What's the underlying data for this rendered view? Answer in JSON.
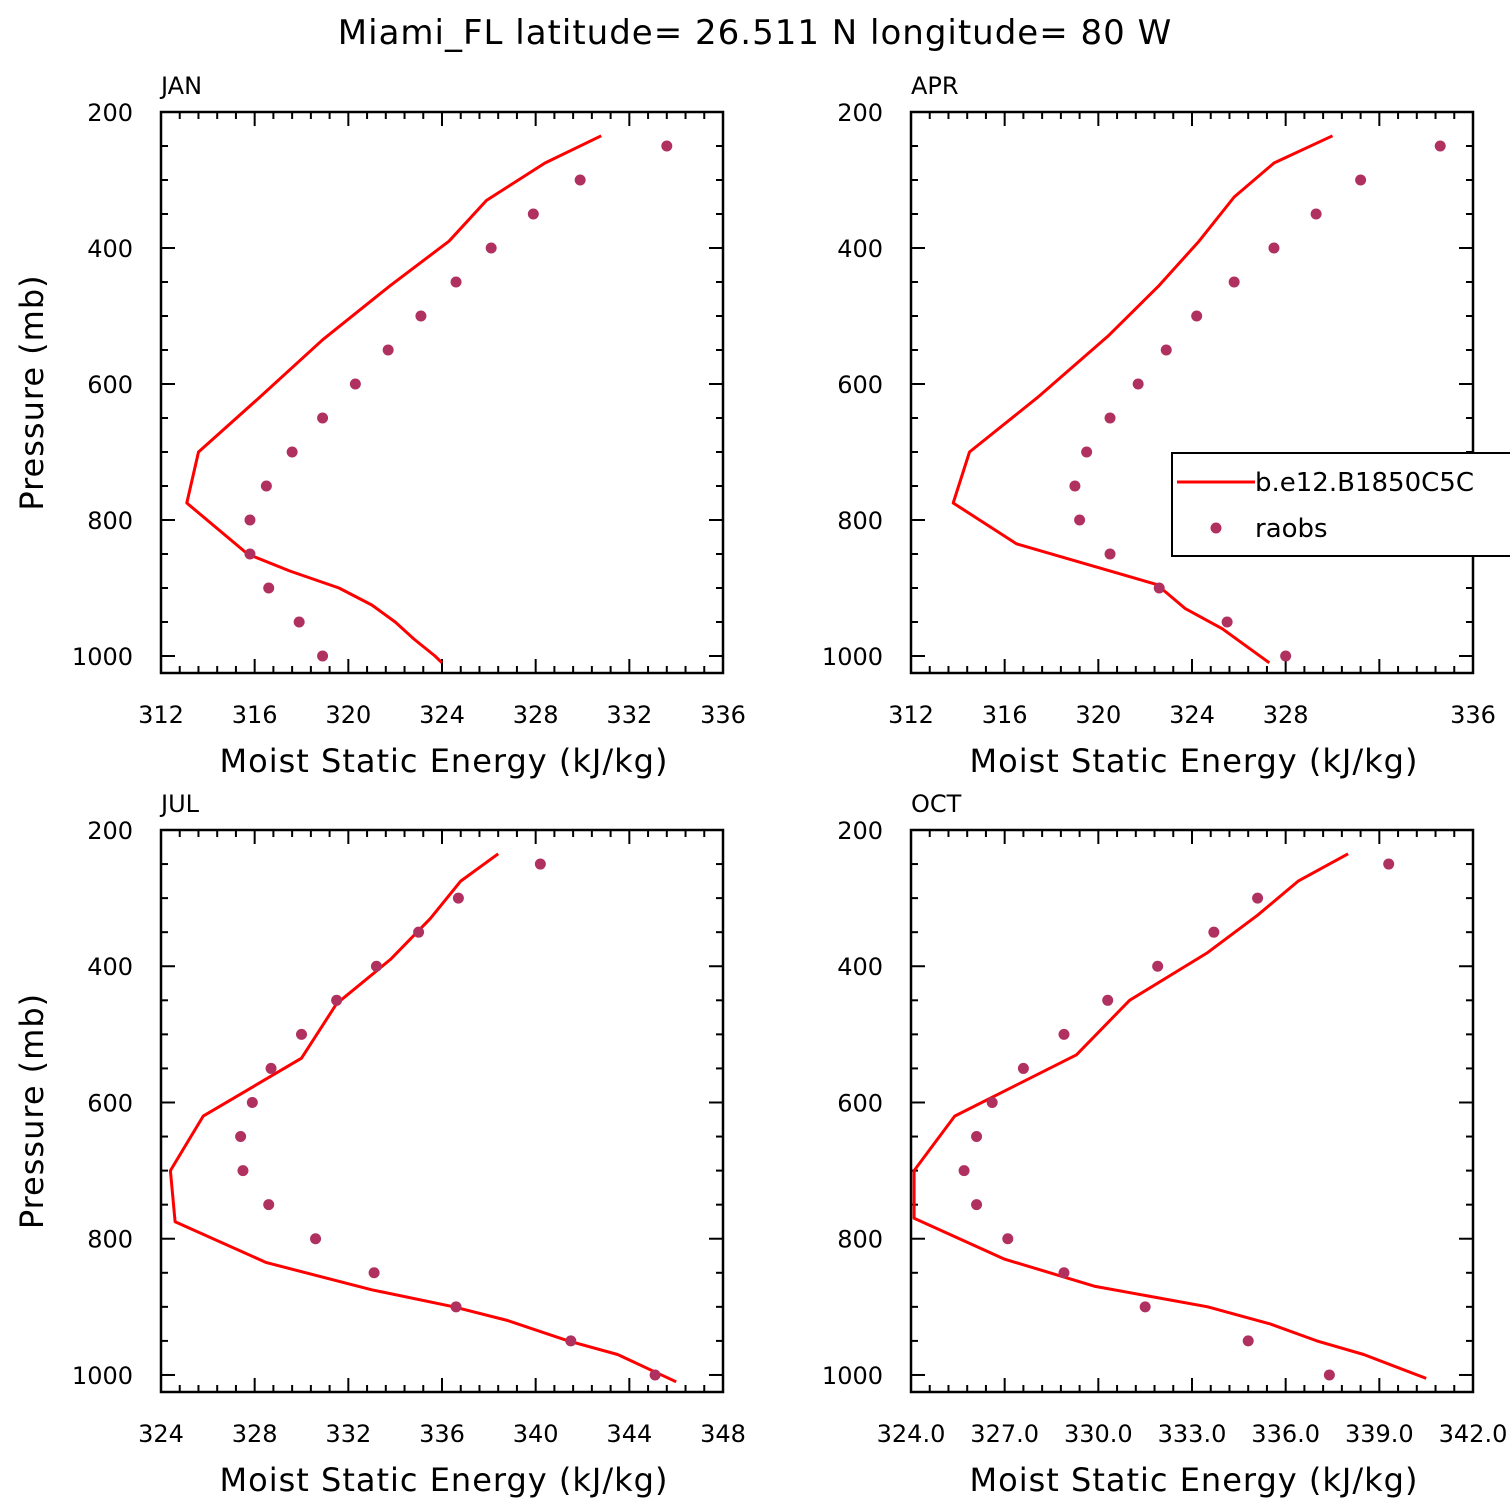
{
  "title": "Miami_FL  latitude= 26.511 N longitude= 80 W",
  "chart_data": [
    {
      "type": "line",
      "panel_title": "JAN",
      "xlabel": "Moist Static Energy (kJ/kg)",
      "ylabel": "Pressure (mb)",
      "xlim": [
        312,
        336
      ],
      "ylim": [
        200,
        1025
      ],
      "y_inverted": true,
      "xticks": [
        "312",
        "316",
        "320",
        "324",
        "328",
        "332",
        "336"
      ],
      "yticks": [
        "200",
        "400",
        "600",
        "800",
        "1000"
      ],
      "model": {
        "x": [
          324.0,
          323.7,
          322.8,
          322.0,
          321.0,
          319.6,
          317.5,
          315.7,
          313.1,
          313.6,
          316.2,
          318.9,
          321.8,
          324.3,
          325.9,
          328.4,
          330.8
        ],
        "y": [
          1010,
          1000,
          975,
          950,
          925,
          900,
          875,
          850,
          775,
          700,
          620,
          535,
          455,
          390,
          330,
          275,
          235
        ]
      },
      "raobs": {
        "x": [
          318.9,
          317.9,
          316.6,
          315.8,
          315.8,
          316.5,
          317.6,
          318.9,
          320.3,
          321.7,
          323.1,
          324.6,
          326.1,
          327.9,
          329.9,
          333.6
        ],
        "y": [
          1000,
          950,
          900,
          850,
          800,
          750,
          700,
          650,
          600,
          550,
          500,
          450,
          400,
          350,
          300,
          250
        ]
      }
    },
    {
      "type": "line",
      "panel_title": "APR",
      "xlabel": "Moist Static Energy (kJ/kg)",
      "ylabel": "",
      "xlim": [
        312,
        336
      ],
      "ylim": [
        200,
        1025
      ],
      "y_inverted": true,
      "xticks": [
        "312",
        "316",
        "320",
        "324",
        "328",
        "336"
      ],
      "yticks": [
        "200",
        "400",
        "600",
        "800",
        "1000"
      ],
      "model": {
        "x": [
          327.3,
          326.5,
          325.3,
          323.7,
          322.5,
          320.0,
          316.5,
          313.8,
          314.5,
          317.4,
          320.4,
          322.6,
          324.3,
          325.8,
          327.5,
          330.0
        ],
        "y": [
          1010,
          990,
          960,
          930,
          895,
          870,
          835,
          775,
          700,
          620,
          530,
          455,
          390,
          325,
          275,
          235
        ]
      },
      "raobs": {
        "x": [
          328.0,
          325.5,
          322.6,
          320.5,
          319.2,
          319.0,
          319.5,
          320.5,
          321.7,
          322.9,
          324.2,
          325.8,
          327.5,
          329.3,
          331.2,
          334.6
        ],
        "y": [
          1000,
          950,
          900,
          850,
          800,
          750,
          700,
          650,
          600,
          550,
          500,
          450,
          400,
          350,
          300,
          250
        ]
      },
      "legend": {
        "position": "right",
        "entries": [
          "b.e12.B1850C5C",
          "raobs"
        ]
      }
    },
    {
      "type": "line",
      "panel_title": "JUL",
      "xlabel": "Moist Static Energy (kJ/kg)",
      "ylabel": "Pressure (mb)",
      "xlim": [
        324,
        348
      ],
      "ylim": [
        200,
        1025
      ],
      "y_inverted": true,
      "xticks": [
        "324",
        "328",
        "332",
        "336",
        "340",
        "344",
        "348"
      ],
      "yticks": [
        "200",
        "400",
        "600",
        "800",
        "1000"
      ],
      "model": {
        "x": [
          346.0,
          343.5,
          341.4,
          338.8,
          336.5,
          333.0,
          328.5,
          324.6,
          324.4,
          325.8,
          330.0,
          331.5,
          333.8,
          335.5,
          336.8,
          338.4
        ],
        "y": [
          1010,
          970,
          950,
          920,
          900,
          875,
          835,
          775,
          700,
          620,
          535,
          455,
          390,
          330,
          275,
          235
        ]
      },
      "raobs": {
        "x": [
          345.1,
          341.5,
          336.6,
          333.1,
          330.6,
          328.6,
          327.5,
          327.4,
          327.9,
          328.7,
          330.0,
          331.5,
          333.2,
          335.0,
          336.7,
          340.2
        ],
        "y": [
          1000,
          950,
          900,
          850,
          800,
          750,
          700,
          650,
          600,
          550,
          500,
          450,
          400,
          350,
          300,
          250
        ]
      }
    },
    {
      "type": "line",
      "panel_title": "OCT",
      "xlabel": "Moist Static Energy (kJ/kg)",
      "ylabel": "",
      "xlim": [
        324,
        342
      ],
      "ylim": [
        200,
        1025
      ],
      "y_inverted": true,
      "xticks": [
        "324.0",
        "327.0",
        "330.0",
        "333.0",
        "336.0",
        "339.0",
        "342.0"
      ],
      "yticks": [
        "200",
        "400",
        "600",
        "800",
        "1000"
      ],
      "model": {
        "x": [
          340.5,
          338.5,
          337.0,
          335.5,
          333.5,
          329.9,
          327.0,
          324.1,
          324.1,
          325.4,
          329.3,
          331.0,
          333.5,
          335.1,
          336.4,
          338.0
        ],
        "y": [
          1005,
          970,
          950,
          925,
          900,
          870,
          830,
          770,
          700,
          620,
          530,
          450,
          380,
          325,
          275,
          235
        ]
      },
      "raobs": {
        "x": [
          337.4,
          334.8,
          331.5,
          328.9,
          327.1,
          326.1,
          325.7,
          326.1,
          326.6,
          327.6,
          328.9,
          330.3,
          331.9,
          333.7,
          335.1,
          339.3
        ],
        "y": [
          1000,
          950,
          900,
          850,
          800,
          750,
          700,
          650,
          600,
          550,
          500,
          450,
          400,
          350,
          300,
          250
        ]
      }
    }
  ]
}
